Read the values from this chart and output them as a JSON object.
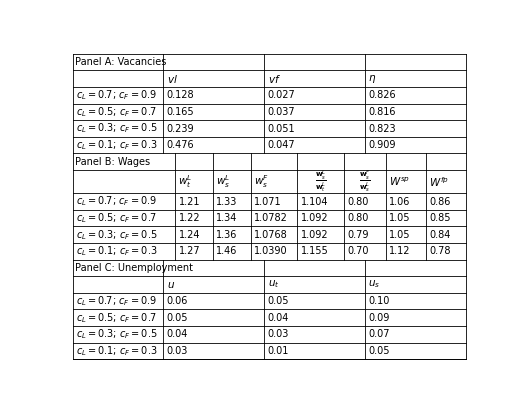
{
  "panel_a_header": "Panel A: Vacancies",
  "panel_b_header": "Panel B: Wages",
  "panel_c_header": "Panel C: Unemployment",
  "row_labels": [
    "$c_L=0.7$; $c_F=0.9$",
    "$c_L=0.5$; $c_F=0.7$",
    "$c_L=0.3$; $c_F=0.5$",
    "$c_L=0.1$; $c_F=0.3$"
  ],
  "panel_a_data": [
    [
      "0.128",
      "0.027",
      "0.826"
    ],
    [
      "0.165",
      "0.037",
      "0.816"
    ],
    [
      "0.239",
      "0.051",
      "0.823"
    ],
    [
      "0.476",
      "0.047",
      "0.909"
    ]
  ],
  "panel_b_data": [
    [
      "1.21",
      "1.33",
      "1.071",
      "1.104",
      "0.80",
      "1.06",
      "0.86"
    ],
    [
      "1.22",
      "1.34",
      "1.0782",
      "1.092",
      "0.80",
      "1.05",
      "0.85"
    ],
    [
      "1.24",
      "1.36",
      "1.0768",
      "1.092",
      "0.79",
      "1.05",
      "0.84"
    ],
    [
      "1.27",
      "1.46",
      "1.0390",
      "1.155",
      "0.70",
      "1.12",
      "0.78"
    ]
  ],
  "panel_c_data": [
    [
      "0.06",
      "0.05",
      "0.10"
    ],
    [
      "0.05",
      "0.04",
      "0.09"
    ],
    [
      "0.04",
      "0.03",
      "0.07"
    ],
    [
      "0.03",
      "0.01",
      "0.05"
    ]
  ],
  "background_color": "#ffffff",
  "font_size": 7.0,
  "math_font_size": 7.5
}
